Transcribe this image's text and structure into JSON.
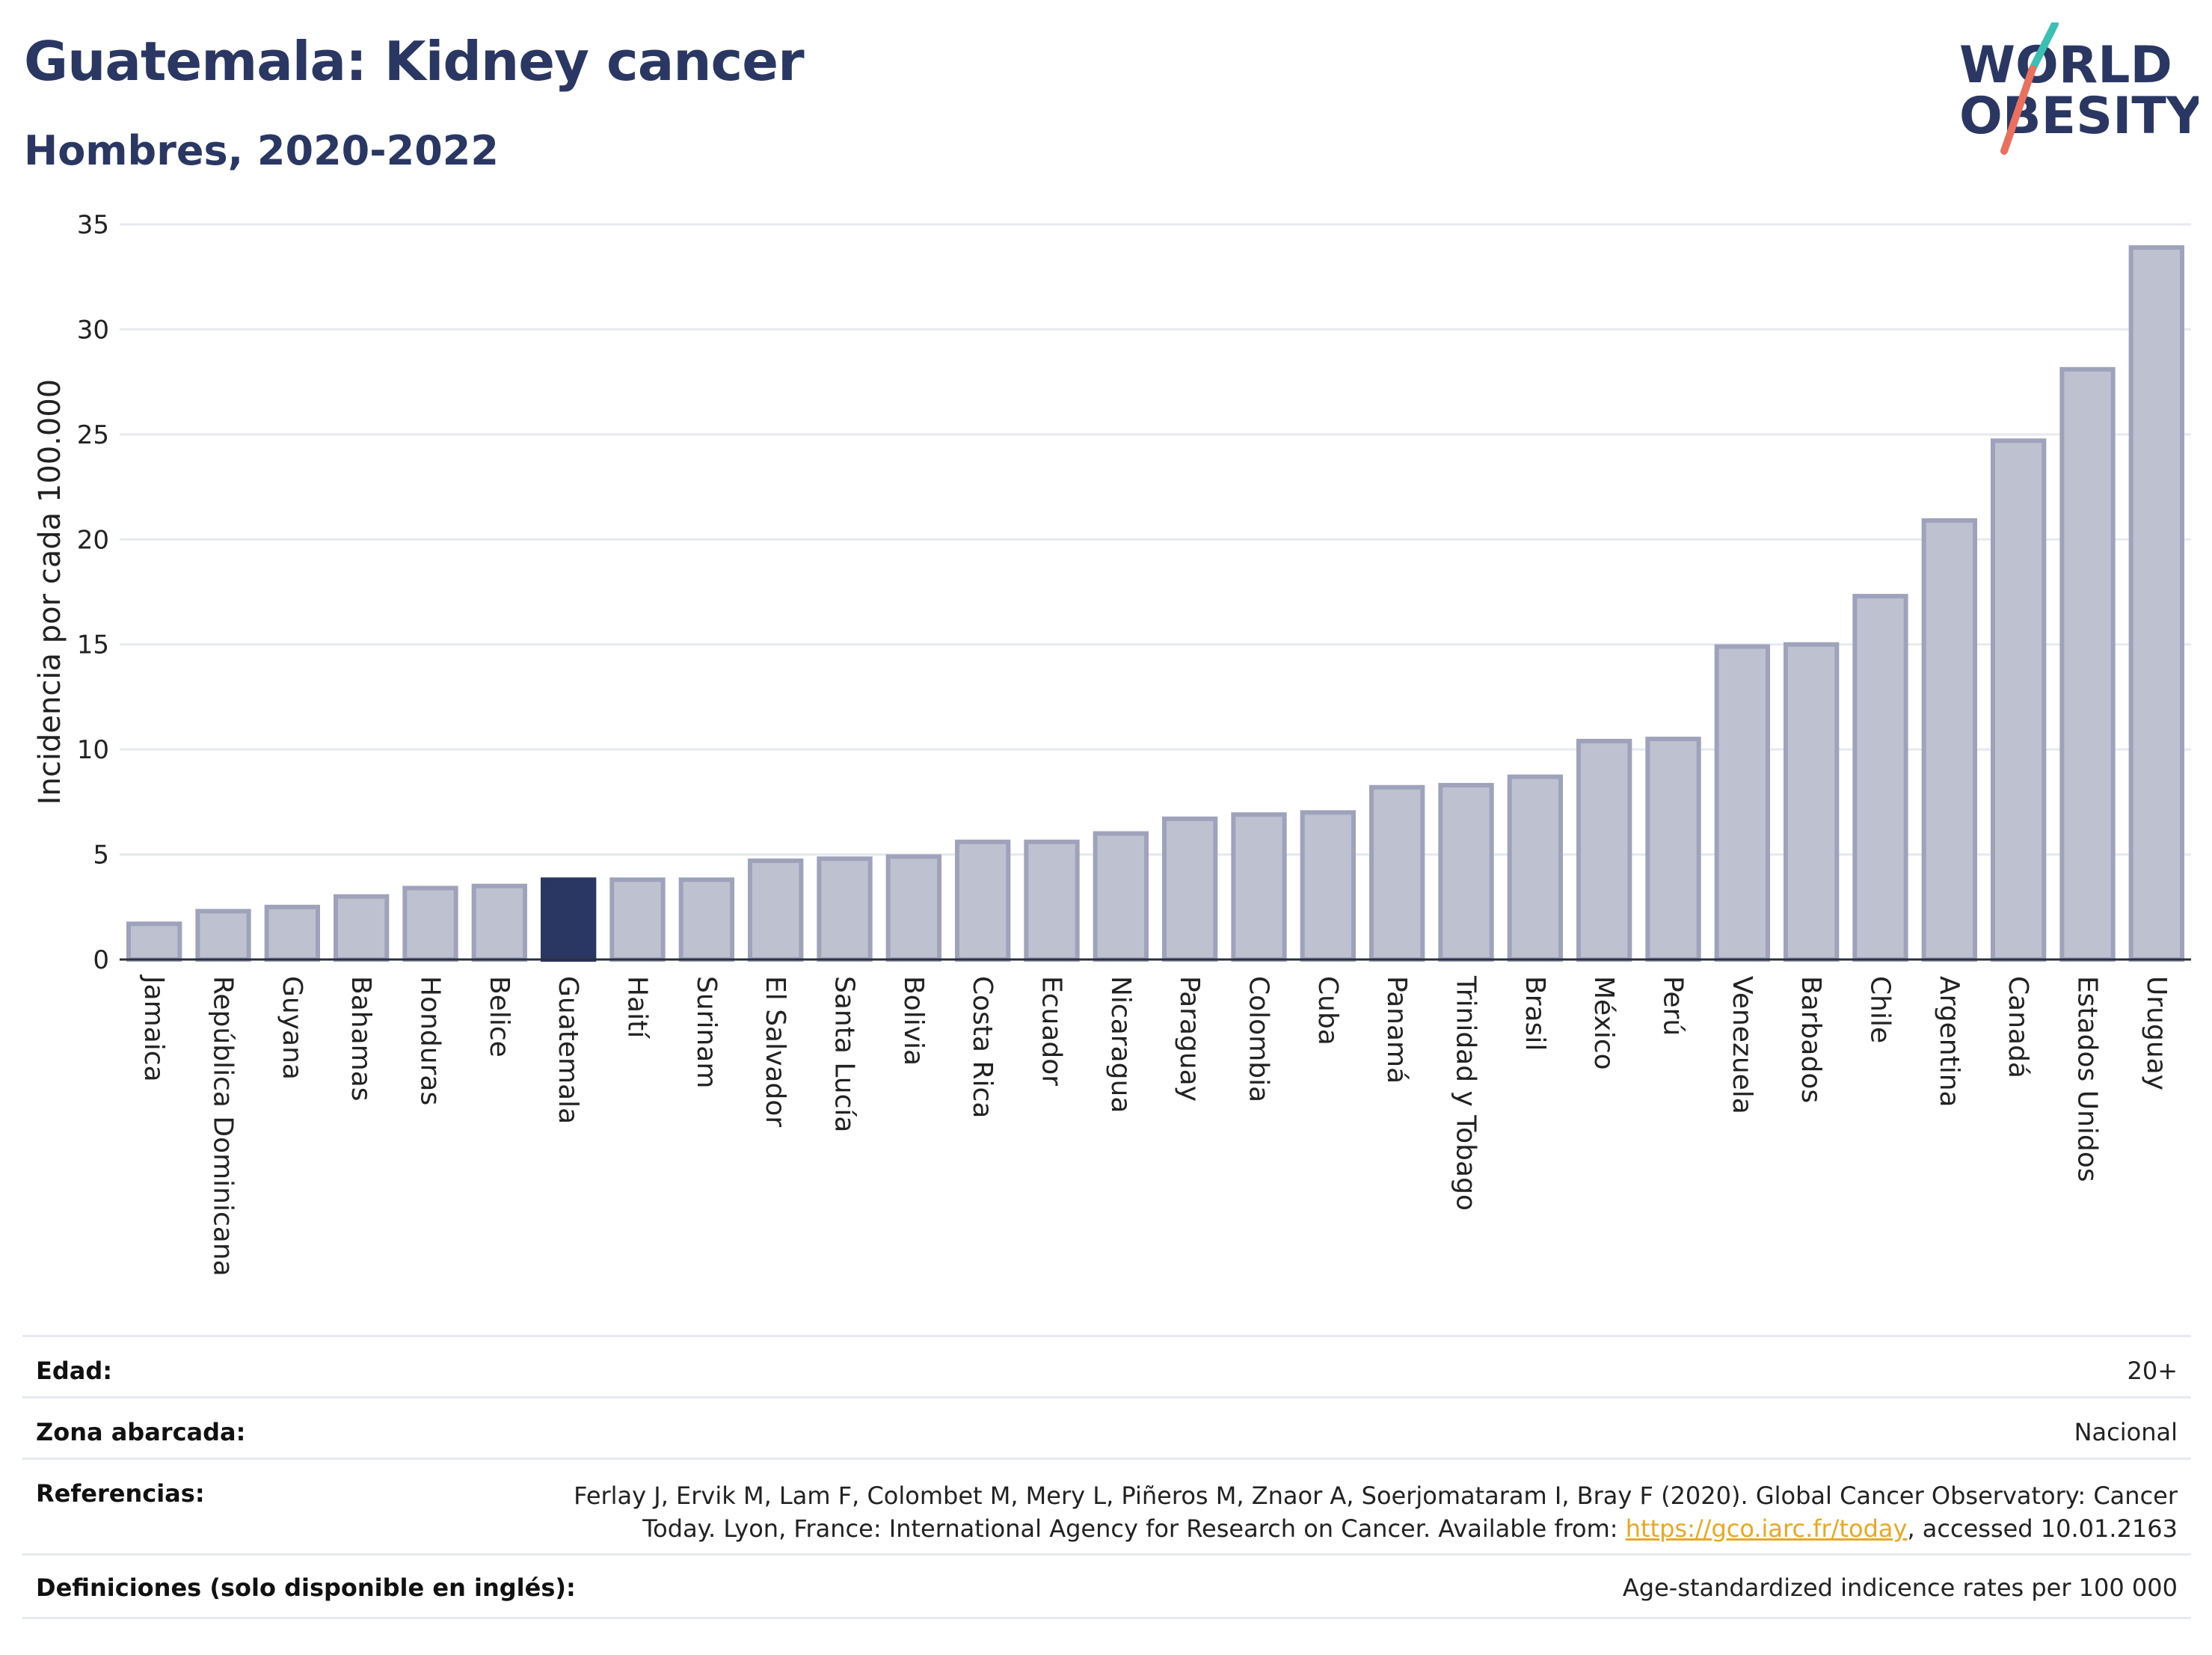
{
  "header": {
    "title": "Guatemala: Kidney cancer",
    "subtitle": "Hombres, 2020-2022",
    "logo_line1": "WORLD",
    "logo_line2": "OBESITY"
  },
  "colors": {
    "title": "#2b3763",
    "bar_default": "#bec2d0",
    "bar_default_stroke": "#9ea3bb",
    "bar_highlight": "#2b3763",
    "grid": "#e6e9f0",
    "link": "#e9a81f",
    "logo_teal": "#3bbfb2",
    "logo_coral": "#e9705f"
  },
  "chart_data": {
    "type": "bar",
    "ylabel": "Incidencia por cada 100.000",
    "ylim": [
      0,
      35
    ],
    "yticks": [
      0,
      5,
      10,
      15,
      20,
      25,
      30,
      35
    ],
    "grid": true,
    "highlight": "Guatemala",
    "categories": [
      "Jamaica",
      "República Dominicana",
      "Guyana",
      "Bahamas",
      "Honduras",
      "Belice",
      "Guatemala",
      "Haití",
      "Surinam",
      "El Salvador",
      "Santa Lucía",
      "Bolivia",
      "Costa Rica",
      "Ecuador",
      "Nicaragua",
      "Paraguay",
      "Colombia",
      "Cuba",
      "Panamá",
      "Trinidad y Tobago",
      "Brasil",
      "México",
      "Perú",
      "Venezuela",
      "Barbados",
      "Chile",
      "Argentina",
      "Canadá",
      "Estados Unidos",
      "Uruguay"
    ],
    "values": [
      1.7,
      2.3,
      2.5,
      3.0,
      3.4,
      3.5,
      3.8,
      3.8,
      3.8,
      4.7,
      4.8,
      4.9,
      5.6,
      5.6,
      6.0,
      6.7,
      6.9,
      7.0,
      8.2,
      8.3,
      8.7,
      10.4,
      10.5,
      14.9,
      15.0,
      17.3,
      20.9,
      24.7,
      28.1,
      33.9
    ]
  },
  "meta": {
    "age_label": "Edad:",
    "age_value": "20+",
    "zone_label": "Zona abarcada:",
    "zone_value": "Nacional",
    "ref_label": "Referencias:",
    "ref_line1": "Ferlay J, Ervik M, Lam F, Colombet M, Mery L, Piñeros M, Znaor A, Soerjomataram I, Bray F (2020). Global Cancer Observatory: Cancer",
    "ref_line2_prefix": "Today. Lyon, France: International Agency for Research on Cancer. Available from: ",
    "ref_link": "https://gco.iarc.fr/today",
    "ref_line2_suffix": ", accessed 10.01.2163",
    "def_label": "Definiciones (solo disponible en inglés):",
    "def_value": "Age-standardized indicence rates per 100 000"
  }
}
